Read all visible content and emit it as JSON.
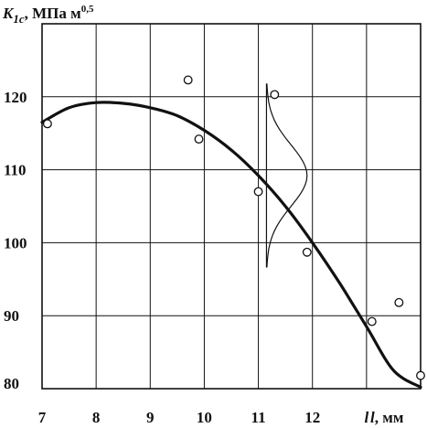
{
  "chart_data": {
    "type": "scatter",
    "ylabel": {
      "symbol": "K",
      "subscript": "1c",
      "unit": ", МПа м",
      "unit_sup": "0,5"
    },
    "xlabel": {
      "symbol": "l",
      "unit": ", мм"
    },
    "x_ticks": [
      "7",
      "8",
      "9",
      "10",
      "11",
      "12",
      "l"
    ],
    "x_tick_values": [
      7,
      8,
      9,
      10,
      11,
      12,
      13
    ],
    "y_ticks": [
      "80",
      "90",
      "100",
      "110",
      "120"
    ],
    "y_tick_values": [
      80,
      90,
      100,
      110,
      120
    ],
    "xlim": [
      7,
      14
    ],
    "ylim": [
      80,
      130
    ],
    "grid": true,
    "series": [
      {
        "kind": "points",
        "x": [
          7.1,
          9.7,
          9.9,
          11.0,
          11.3,
          11.9,
          13.1,
          13.6,
          14.0
        ],
        "y": [
          116.3,
          122.3,
          114.2,
          107.0,
          120.3,
          98.7,
          89.2,
          91.8,
          81.8
        ]
      },
      {
        "kind": "curve",
        "x": [
          7.0,
          7.5,
          8.0,
          8.5,
          9.0,
          9.5,
          10.0,
          10.5,
          11.0,
          11.5,
          12.0,
          12.5,
          13.0,
          13.5,
          14.0
        ],
        "y": [
          116.5,
          118.5,
          119.2,
          119.1,
          118.5,
          117.4,
          115.4,
          112.7,
          109.2,
          105.0,
          100.0,
          94.5,
          88.5,
          82.5,
          80.2
        ]
      }
    ],
    "annotation": {
      "type": "distribution-bell",
      "center_x": 11.15,
      "center_y": 109.2,
      "spread_y": 4.2,
      "amplitude_x": 0.75
    },
    "colors": {
      "line": "#111111",
      "grid": "#111111",
      "marker_fill": "#ffffff",
      "background": "#ffffff"
    }
  }
}
